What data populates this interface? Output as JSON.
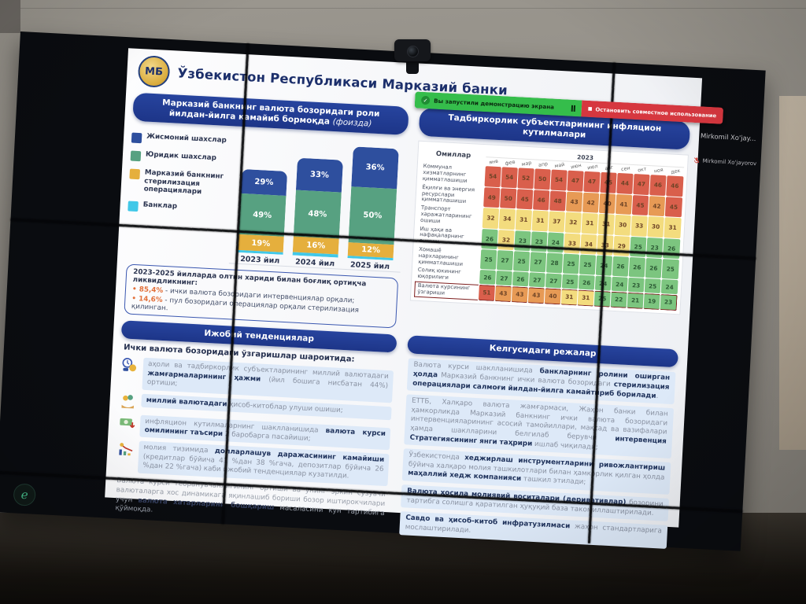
{
  "room": {
    "share_bar": {
      "sharing_label": "Вы запустили демонстрацию экрана",
      "stop_button": "Остановить совместное использование",
      "green": "#35bd4b",
      "red": "#d6373f"
    },
    "participants": {
      "tile_name": "Mirkomil Xo'jay...",
      "active_speaker": "Mirkomil Xo'jayorov"
    },
    "wall_logo": "e"
  },
  "slide": {
    "logo_text": "МБ",
    "bank_title": "Ўзбекистон Республикаси Марказий банки",
    "currency_role": {
      "title": "Марказий банкнинг валюта бозоридаги роли йилдан-йилга камайиб бормоқда",
      "title_note": "(фоизда)",
      "legend": [
        {
          "label": "Жисмоний шахслар",
          "color": "#2e4f9e"
        },
        {
          "label": "Юридик шахслар",
          "color": "#57a181"
        },
        {
          "label": "Марказий банкнинг стерилизация операциялари",
          "color": "#e5af3d"
        },
        {
          "label": "Банклар",
          "color": "#41c8e8"
        }
      ],
      "note_title": "2023-2025 йилларда олтин хариди билан боғлиқ ортиқча ликвидликнинг:",
      "bullets": [
        {
          "value": "85,4%",
          "text": "ички валюта бозоридаги интервенциялар орқали;"
        },
        {
          "value": "14,6%",
          "text": "пул бозоридаги операциялар орқали стерилизация қилинган."
        }
      ]
    },
    "inflation": {
      "title": "Тадбиркорлик субъектларининг инфляцион кутилмалари"
    },
    "positive_trends": {
      "title": "Ижобий тенденциялар",
      "intro": "Ички валюта бозоридаги ўзгаришлар шароитида:",
      "bullets": [
        {
          "icon": "savings-clock-icon",
          "segments": [
            {
              "t": "аҳоли ва тадбиркорлик субъектларининг миллий валютадаги "
            },
            {
              "t": "жамғармаларининг ҳажми",
              "b": true
            },
            {
              "t": " (йил бошига нисбатан 44%) ортиши;"
            }
          ]
        },
        {
          "icon": "hands-coins-icon",
          "segments": [
            {
              "t": "миллий валютадаги",
              "b": true
            },
            {
              "t": " ҳисоб-китоблар улуши ошиши;"
            }
          ]
        },
        {
          "icon": "banknote-down-icon",
          "segments": [
            {
              "t": "инфляцион кутилмаларнинг шаклланишида "
            },
            {
              "t": "валюта курси омилининг таъсири",
              "b": true
            },
            {
              "t": " 2 баробарга пасайиши;"
            }
          ]
        },
        {
          "icon": "declining-chart-icon",
          "segments": [
            {
              "t": "молия тизимида "
            },
            {
              "t": "долларлашув даражасининг камайиши",
              "b": true
            },
            {
              "t": " (кредитлар бўйича 41 %дан 38 %гача, депозитлар бўйича 26 %дан 22 %гача) каби ижобий тенденциялар кузатилди."
            }
          ]
        }
      ],
      "footer_segments": [
        {
          "t": "Валюта курси тебранувчанлигининг ортиши ва унинг эркин сузувчи валюталарга хос динамикага яқинлашиб бориши бозор иштирокчилари учун "
        },
        {
          "t": "валюта хатарларини бошқариш",
          "b": true
        },
        {
          "t": " масаласини кун тартибига қўймоқда."
        }
      ]
    },
    "future_plans": {
      "title": "Келгусидаги режалар",
      "paragraphs": [
        [
          {
            "t": "Валюта курси шаклланишида "
          },
          {
            "t": "банкларнинг ролини оширган ҳолда",
            "b": true
          },
          {
            "t": " Марказий банкнинг ички валюта бозоридаги "
          },
          {
            "t": "стерилизация операциялари салмоғи йилдан-йилга камайтириб борилади",
            "b": true
          },
          {
            "t": "."
          }
        ],
        [
          {
            "t": "ЕТТБ, Халқаро валюта жамғармаси, Жаҳон банки билан ҳамкорликда Марказий банкнинг ички валюта бозоридаги интервенцияларининг асосий тамойиллари, мақсад ва вазифалари ҳамда шаклларини белгилаб берувчи "
          },
          {
            "t": "интервенция Стратегиясининг янги таҳрири",
            "b": true
          },
          {
            "t": " ишлаб чиқилади;"
          }
        ],
        [
          {
            "t": "Ўзбекистонда "
          },
          {
            "t": "хеджирлаш инструментларини ривожлантириш",
            "b": true
          },
          {
            "t": " бўйича халқаро молия ташкилотлари билан ҳамкорлик қилган ҳолда "
          },
          {
            "t": "маҳаллий хедж компанияси",
            "b": true
          },
          {
            "t": " ташкил этилади;"
          }
        ],
        [
          {
            "t": "Валюта ҳосила молиявий воситалари (деривативлар)",
            "b": true
          },
          {
            "t": " бозорини тартибга солишга қаратилган ҳуқуқий база такомиллаштирилади."
          }
        ],
        [
          {
            "t": "Савдо ва ҳисоб-китоб инфратузилмаси",
            "b": true
          },
          {
            "t": " жаҳон стандартларига мослаштирилади."
          }
        ]
      ]
    }
  },
  "chart_data": [
    {
      "type": "bar",
      "stacked": true,
      "unit": "%",
      "title": "Марказий банкнинг валюта бозоридаги роли йилдан-йилга камайиб бормоқда (фоизда)",
      "categories": [
        "2023 йил",
        "2024 йил",
        "2025 йил"
      ],
      "series": [
        {
          "name": "Жисмоний шахслар",
          "color": "#2e4f9e",
          "values": [
            29,
            33,
            36
          ]
        },
        {
          "name": "Юридик шахслар",
          "color": "#57a181",
          "values": [
            49,
            48,
            50
          ]
        },
        {
          "name": "Марказий банкнинг стерилизация операциялари",
          "color": "#e5af3d",
          "values": [
            19,
            16,
            12
          ]
        },
        {
          "name": "Банклар",
          "color": "#41c8e8",
          "values": [
            3,
            3,
            2
          ]
        }
      ],
      "ylim": [
        0,
        100
      ],
      "legend_position": "left"
    },
    {
      "type": "heatmap",
      "title": "Тадбиркорлик субъектларининг инфляцион кутилмалари",
      "row_header": "Омиллар",
      "year": "2023",
      "columns": [
        "янв",
        "фев",
        "мар",
        "апр",
        "май",
        "июн",
        "июл",
        "авг",
        "сен",
        "окт",
        "ноя",
        "дек"
      ],
      "rows": [
        {
          "label": "Коммунал хизматларнинг қимматлашиши",
          "values": [
            54,
            54,
            52,
            50,
            54,
            47,
            47,
            45,
            44,
            47,
            46,
            46
          ]
        },
        {
          "label": "Ёқилғи ва энергия ресурслари қимматлашиши",
          "values": [
            49,
            50,
            45,
            46,
            48,
            43,
            42,
            40,
            41,
            45,
            42,
            45
          ]
        },
        {
          "label": "Транспорт харажатларининг ошиши",
          "values": [
            32,
            34,
            31,
            31,
            37,
            32,
            31,
            31,
            30,
            33,
            30,
            31
          ]
        },
        {
          "label": "Иш ҳақи ва нафақаларнинг ошиши",
          "values": [
            26,
            32,
            23,
            23,
            24,
            33,
            34,
            33,
            29,
            25,
            23,
            26
          ]
        },
        {
          "label": "Хомашё нархларининг қимматлашиши",
          "values": [
            25,
            27,
            25,
            27,
            28,
            25,
            25,
            24,
            26,
            26,
            26,
            25
          ]
        },
        {
          "label": "Солиқ юкининг юқорилиги",
          "values": [
            26,
            27,
            26,
            27,
            27,
            25,
            26,
            24,
            24,
            23,
            25,
            24
          ]
        },
        {
          "label": "Валюта курсининг ўзгариши",
          "values": [
            51,
            43,
            43,
            43,
            40,
            31,
            31,
            25,
            22,
            21,
            19,
            23
          ],
          "highlighted": true
        }
      ]
    }
  ]
}
